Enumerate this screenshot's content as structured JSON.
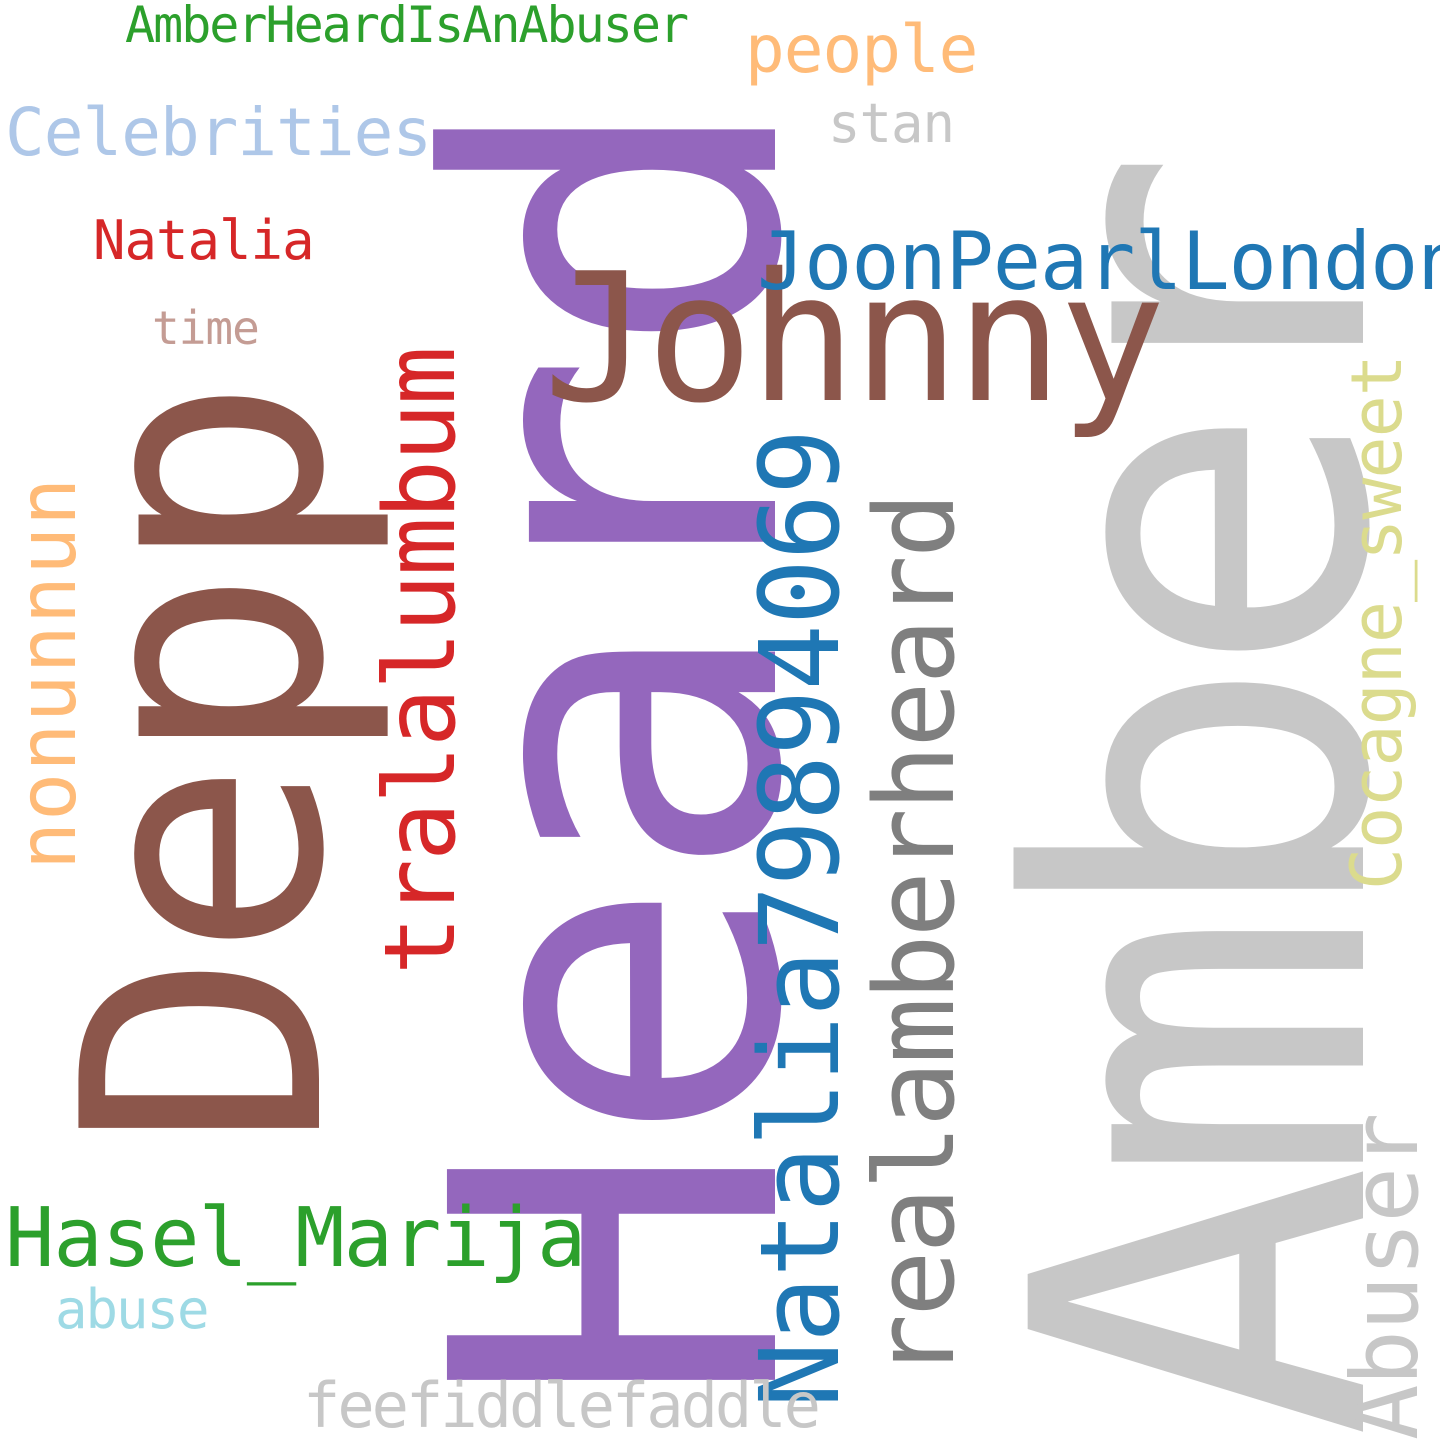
{
  "words": {
    "amber": {
      "text": "Amber",
      "color": "#c7c7c7"
    },
    "heard": {
      "text": "Heard",
      "color": "#9467bd"
    },
    "depp": {
      "text": "Depp",
      "color": "#8c564b"
    },
    "johnny": {
      "text": "Johnny",
      "color": "#8c564b"
    },
    "natalia_id": {
      "text": "Natalia79894069",
      "color": "#1f77b4"
    },
    "realamberheard": {
      "text": "realamberheard",
      "color": "#7f7f7f"
    },
    "tralalumbum": {
      "text": "tralalumbum",
      "color": "#d62728"
    },
    "nonunnun": {
      "text": "nonunnun",
      "color": "#ffbb78"
    },
    "joonpearllondon": {
      "text": "JoonPearlLondon",
      "color": "#1f77b4"
    },
    "cocagne_sweet": {
      "text": "Cocagne_sweet",
      "color": "#dbdb8d"
    },
    "abuser": {
      "text": "Abuser",
      "color": "#c7c7c7"
    },
    "hasel_marija": {
      "text": "Hasel_Marija",
      "color": "#2ca02c"
    },
    "amberheardisanabuser": {
      "text": "AmberHeardIsAnAbuser",
      "color": "#2ca02c"
    },
    "people": {
      "text": "people",
      "color": "#ffbb78"
    },
    "celebrities": {
      "text": "Celebrities",
      "color": "#aec7e8"
    },
    "stan": {
      "text": "stan",
      "color": "#c7c7c7"
    },
    "natalia": {
      "text": "Natalia",
      "color": "#d62728"
    },
    "time": {
      "text": "time",
      "color": "#c49c94"
    },
    "abuse": {
      "text": "abuse",
      "color": "#9edae5"
    },
    "feefiddlefaddle": {
      "text": "feefiddlefaddle",
      "color": "#c7c7c7"
    }
  }
}
